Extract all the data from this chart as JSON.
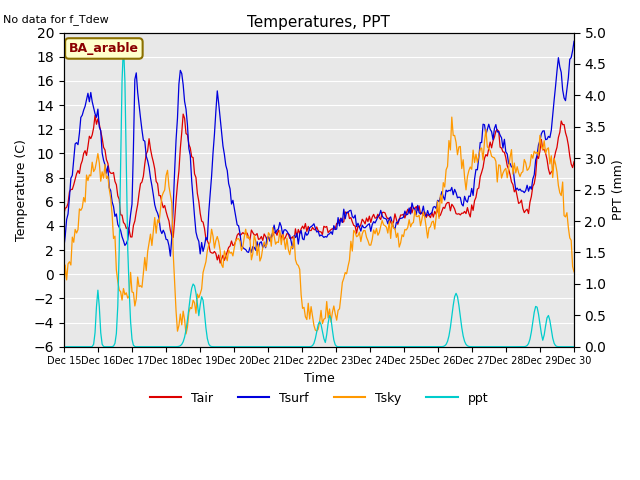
{
  "title": "Temperatures, PPT",
  "subtitle": "No data for f_Tdew",
  "site_label": "BA_arable",
  "xlabel": "Time",
  "ylabel_left": "Temperature (C)",
  "ylabel_right": "PPT (mm)",
  "xlim": [
    0,
    359
  ],
  "ylim_left": [
    -6,
    20
  ],
  "ylim_right": [
    0.0,
    5.0
  ],
  "xtick_labels": [
    "Dec 15",
    "Dec 16",
    "Dec 17",
    "Dec 18",
    "Dec 19",
    "Dec 20",
    "Dec 21",
    "Dec 22",
    "Dec 23",
    "Dec 24",
    "Dec 25",
    "Dec 26",
    "Dec 27",
    "Dec 28",
    "Dec 29",
    "Dec 30"
  ],
  "yticks_left": [
    -6,
    -4,
    -2,
    0,
    2,
    4,
    6,
    8,
    10,
    12,
    14,
    16,
    18,
    20
  ],
  "yticks_right": [
    0.0,
    0.5,
    1.0,
    1.5,
    2.0,
    2.5,
    3.0,
    3.5,
    4.0,
    4.5,
    5.0
  ],
  "colors": {
    "Tair": "#dd0000",
    "Tsurf": "#0000dd",
    "Tsky": "#ff9900",
    "ppt": "#00cccc",
    "background": "#e8e8e8",
    "grid": "#ffffff"
  },
  "n_points": 360
}
